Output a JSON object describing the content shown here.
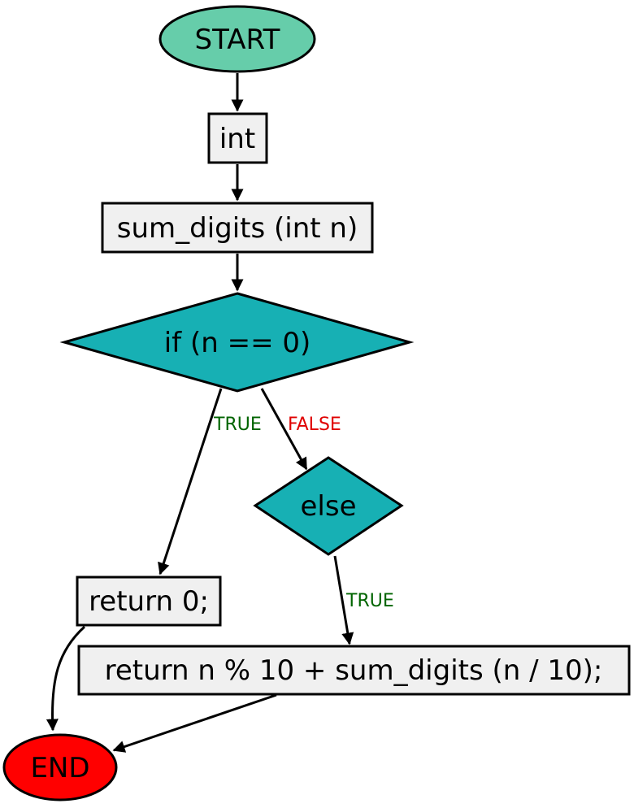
{
  "colors": {
    "start": "#66cdaa",
    "end": "#ff0000",
    "decision": "#17b0b4",
    "process": "#f0f0f0",
    "true_label": "#006400",
    "false_label": "#e00000"
  },
  "nodes": {
    "start": "START",
    "type": "int",
    "function": "sum_digits (int n)",
    "if_cond": "if (n == 0)",
    "else": "else",
    "return_zero": "return 0;",
    "return_recursive": "return n % 10 + sum_digits (n / 10);",
    "end": "END"
  },
  "edges": {
    "if_true": "TRUE",
    "if_false": "FALSE",
    "else_true": "TRUE"
  }
}
